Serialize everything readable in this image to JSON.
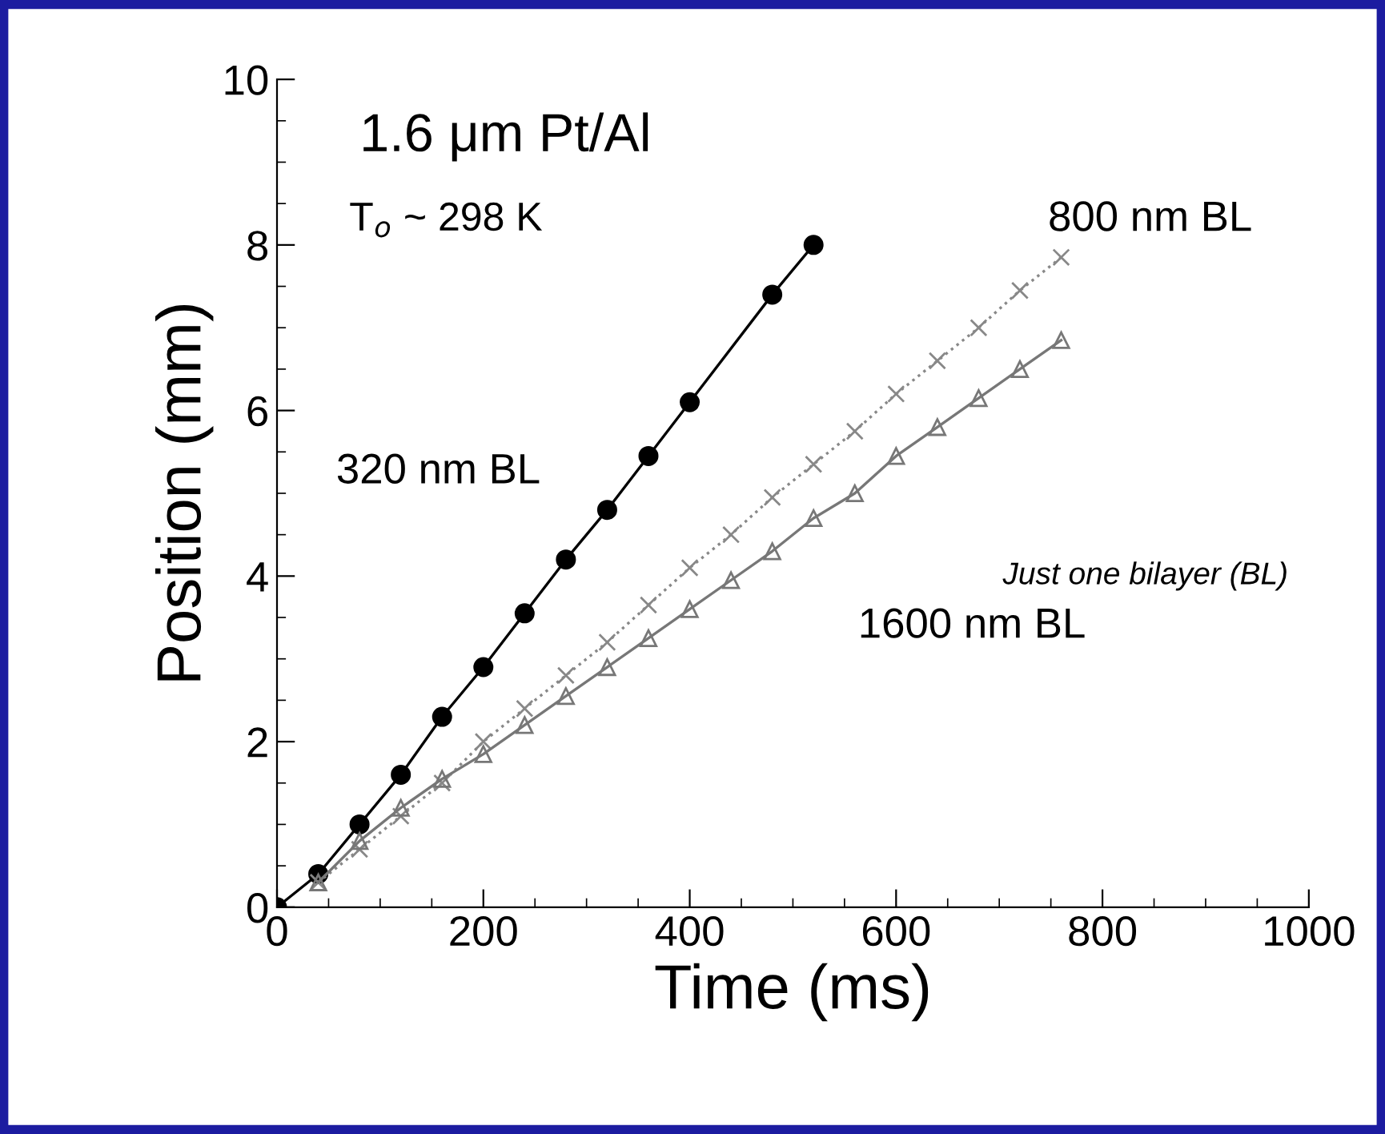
{
  "chart_data": {
    "type": "line",
    "xlabel": "Time (ms)",
    "ylabel": "Position (mm)",
    "annotations": [
      "1.6 μm Pt/Al",
      "T$_{o}$ ~ 298 K",
      "Just one bilayer (BL)"
    ],
    "xlim": [
      0,
      1000
    ],
    "ylim": [
      0,
      10
    ],
    "xticks": [
      0,
      200,
      400,
      600,
      800,
      1000
    ],
    "yticks": [
      0,
      2,
      4,
      6,
      8,
      10
    ],
    "grid": false,
    "legend": false,
    "series": [
      {
        "name": "320 nm BL",
        "color": "#000000",
        "marker": "circle",
        "line_style": "solid",
        "x": [
          0,
          40,
          80,
          120,
          160,
          200,
          240,
          280,
          320,
          360,
          400,
          480,
          520
        ],
        "values": [
          0,
          0.4,
          1.0,
          1.6,
          2.3,
          2.9,
          3.55,
          4.2,
          4.8,
          5.45,
          6.1,
          7.4,
          8.0
        ]
      },
      {
        "name": "800 nm BL",
        "color": "#888888",
        "marker": "cross",
        "line_style": "dotted",
        "x": [
          40,
          80,
          120,
          160,
          200,
          240,
          280,
          320,
          360,
          400,
          440,
          480,
          520,
          560,
          600,
          640,
          680,
          720,
          760
        ],
        "values": [
          0.3,
          0.7,
          1.1,
          1.5,
          2.0,
          2.4,
          2.8,
          3.2,
          3.65,
          4.1,
          4.5,
          4.95,
          5.35,
          5.75,
          6.2,
          6.6,
          7.0,
          7.45,
          7.85
        ]
      },
      {
        "name": "1600 nm BL",
        "color": "#777777",
        "marker": "triangle",
        "line_style": "solid",
        "x": [
          40,
          80,
          120,
          160,
          200,
          240,
          280,
          320,
          360,
          400,
          440,
          480,
          520,
          560,
          600,
          640,
          680,
          720,
          760
        ],
        "values": [
          0.3,
          0.8,
          1.2,
          1.55,
          1.85,
          2.2,
          2.55,
          2.9,
          3.25,
          3.6,
          3.95,
          4.3,
          4.7,
          5.0,
          5.45,
          5.8,
          6.15,
          6.5,
          6.85
        ]
      }
    ]
  }
}
